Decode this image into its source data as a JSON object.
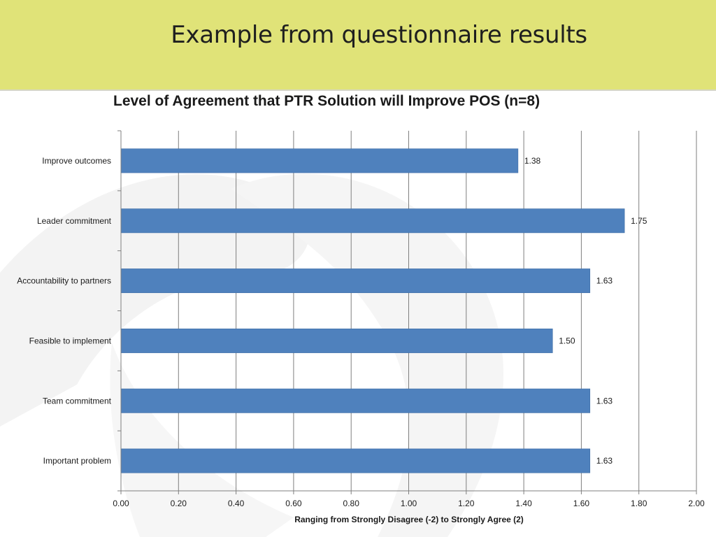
{
  "slide": {
    "title": "Example from questionnaire results"
  },
  "colors": {
    "header_bg": "#e0e378",
    "bar_fill": "#4f81bd",
    "gridline": "#7f7f7f"
  },
  "chart_data": {
    "type": "bar",
    "orientation": "horizontal",
    "title": "Level of Agreement that PTR Solution will Improve POS (n=8)",
    "xlabel": "Ranging from Strongly Disagree (-2) to Strongly Agree (2)",
    "ylabel": "",
    "categories": [
      "Improve outcomes",
      "Leader commitment",
      "Accountability to partners",
      "Feasible to implement",
      "Team commitment",
      "Important problem"
    ],
    "values": [
      1.38,
      1.75,
      1.63,
      1.5,
      1.63,
      1.63
    ],
    "data_labels": [
      "1.38",
      "1.75",
      "1.63",
      "1.50",
      "1.63",
      "1.63"
    ],
    "xlim": [
      0,
      2
    ],
    "x_ticks": [
      "0.00",
      "0.20",
      "0.40",
      "0.60",
      "0.80",
      "1.00",
      "1.20",
      "1.40",
      "1.60",
      "1.80",
      "2.00"
    ],
    "grid": true,
    "legend": "none"
  }
}
